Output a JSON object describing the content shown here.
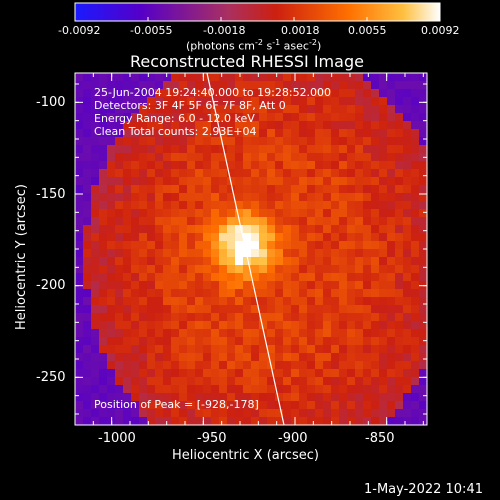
{
  "colors": {
    "background": "#000000",
    "foreground": "#ffffff",
    "colormap": [
      "#1a1aff",
      "#5500c8",
      "#aa3060",
      "#cc2010",
      "#ff7000",
      "#ffc040",
      "#ffffff"
    ]
  },
  "colorbar": {
    "ticks": [
      "-0.0092",
      "-0.0055",
      "-0.0018",
      "0.0018",
      "0.0055",
      "0.0092"
    ],
    "units_main": "(photons cm",
    "units_sup1": "-2",
    "units_mid": " s",
    "units_sup2": "-1",
    "units_end": " asec",
    "units_sup3": "-2",
    "units_close": ")",
    "range": [
      -0.0092,
      0.0092
    ]
  },
  "plot": {
    "title": "Reconstructed RHESSI Image",
    "info_lines": [
      "25-Jun-2004 19:24:40.000 to 19:28:52.000",
      "Detectors: 3F 4F 5F 6F 7F 8F, Att 0",
      "Energy Range: 6.0 - 12.0 keV",
      "Clean     Total counts: 2.93E+04"
    ],
    "peak_label": "Position of Peak = [-928,-178]",
    "xlabel": "Heliocentric X (arcsec)",
    "ylabel": "Heliocentric Y (arcsec)",
    "xticks": [
      "-1000",
      "-950",
      "-900",
      "-850"
    ],
    "yticks": [
      "-100",
      "-150",
      "-200",
      "-250"
    ]
  },
  "chart_data": {
    "type": "heatmap",
    "title": "Reconstructed RHESSI Image",
    "xlabel": "Heliocentric X (arcsec)",
    "ylabel": "Heliocentric Y (arcsec)",
    "xlim": [
      -1020,
      -828
    ],
    "ylim": [
      -276,
      -84
    ],
    "xticks": [
      -1000,
      -950,
      -900,
      -850
    ],
    "yticks": [
      -100,
      -150,
      -200,
      -250
    ],
    "zlim": [
      -0.0092,
      0.0092
    ],
    "peak": [
      -928,
      -178
    ],
    "limb_line": [
      [
        -948,
        -84
      ],
      [
        -906,
        -276
      ]
    ]
  },
  "footer": {
    "timestamp": "1-May-2022 10:41"
  }
}
